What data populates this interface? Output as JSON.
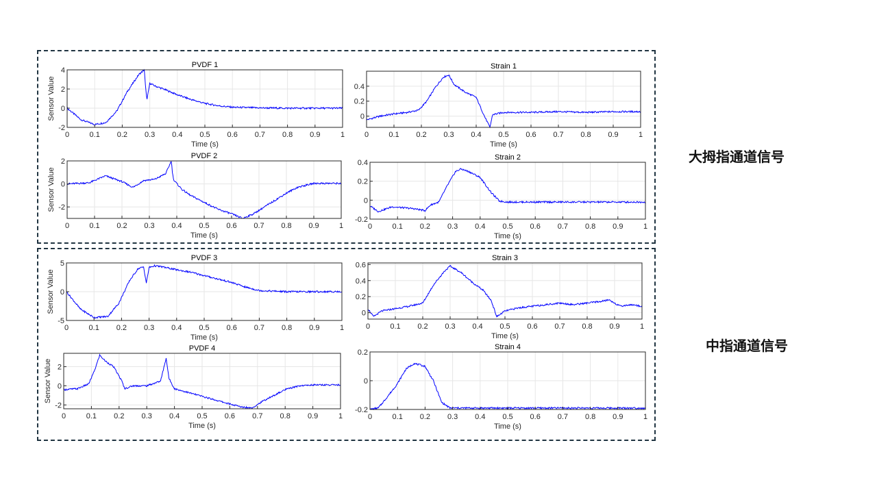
{
  "groups": [
    {
      "label": "大拇指通道信号"
    },
    {
      "label": "中指通道信号"
    }
  ],
  "colors": {
    "line": "#0000ff",
    "grid": "#e6e6e6",
    "axis": "#262626",
    "box": "#1f3340"
  },
  "chart_data": [
    {
      "type": "line",
      "title": "PVDF 1",
      "xlabel": "Time (s)",
      "ylabel": "Sensor Value",
      "xlim": [
        0,
        1
      ],
      "ylim": [
        -2,
        4
      ],
      "xticks": [
        0,
        0.1,
        0.2,
        0.3,
        0.4,
        0.5,
        0.6,
        0.7,
        0.8,
        0.9,
        1
      ],
      "xtick_labels": [
        "0",
        "0.1",
        "0.2",
        "0.3",
        "0.4",
        "0.5",
        "0.6",
        "0.7",
        "0.8",
        "0.9",
        "1"
      ],
      "yticks": [
        -2,
        0,
        2,
        4
      ],
      "ytick_labels": [
        "-2",
        "0",
        "2",
        "4"
      ],
      "grid": true,
      "series": [
        {
          "x": [
            0,
            0.05,
            0.1,
            0.14,
            0.18,
            0.22,
            0.26,
            0.28,
            0.285,
            0.29,
            0.3,
            0.32,
            0.35,
            0.4,
            0.45,
            0.5,
            0.55,
            0.6,
            0.7,
            0.8,
            0.9,
            1.0
          ],
          "y": [
            0,
            -1.2,
            -1.7,
            -1.5,
            -0.3,
            1.8,
            3.5,
            4.0,
            2.0,
            0.9,
            2.6,
            2.3,
            2.0,
            1.4,
            0.9,
            0.5,
            0.25,
            0.1,
            0.03,
            0.0,
            0.0,
            0.0
          ]
        }
      ]
    },
    {
      "type": "line",
      "title": "Strain 1",
      "xlabel": "Time (s)",
      "ylabel": "",
      "xlim": [
        0,
        1
      ],
      "ylim": [
        -0.15,
        0.6
      ],
      "xticks": [
        0,
        0.1,
        0.2,
        0.3,
        0.4,
        0.5,
        0.6,
        0.7,
        0.8,
        0.9,
        1
      ],
      "xtick_labels": [
        "0",
        "0.1",
        "0.2",
        "0.3",
        "0.4",
        "0.5",
        "0.6",
        "0.7",
        "0.8",
        "0.9",
        "1"
      ],
      "yticks": [
        0,
        0.2,
        0.4
      ],
      "ytick_labels": [
        "0",
        "0.2",
        "0.4"
      ],
      "grid": true,
      "series": [
        {
          "x": [
            0,
            0.05,
            0.1,
            0.15,
            0.19,
            0.22,
            0.25,
            0.28,
            0.3,
            0.32,
            0.36,
            0.4,
            0.43,
            0.45,
            0.46,
            0.5,
            0.6,
            0.7,
            0.8,
            0.9,
            1.0
          ],
          "y": [
            -0.05,
            0.0,
            0.03,
            0.05,
            0.08,
            0.2,
            0.38,
            0.52,
            0.55,
            0.42,
            0.32,
            0.25,
            0.0,
            -0.15,
            0.02,
            0.05,
            0.05,
            0.06,
            0.05,
            0.06,
            0.06
          ]
        }
      ]
    },
    {
      "type": "line",
      "title": "PVDF 2",
      "xlabel": "Time (s)",
      "ylabel": "Sensor Value",
      "xlim": [
        0,
        1
      ],
      "ylim": [
        -3,
        2
      ],
      "xticks": [
        0,
        0.1,
        0.2,
        0.3,
        0.4,
        0.5,
        0.6,
        0.7,
        0.8,
        0.9,
        1
      ],
      "xtick_labels": [
        "0",
        "0.1",
        "0.2",
        "0.3",
        "0.4",
        "0.5",
        "0.6",
        "0.7",
        "0.8",
        "0.9",
        "1"
      ],
      "yticks": [
        -2,
        0,
        2
      ],
      "ytick_labels": [
        "-2",
        "0",
        "2"
      ],
      "grid": true,
      "series": [
        {
          "x": [
            0,
            0.08,
            0.14,
            0.2,
            0.24,
            0.28,
            0.32,
            0.36,
            0.38,
            0.385,
            0.39,
            0.42,
            0.45,
            0.5,
            0.55,
            0.6,
            0.64,
            0.68,
            0.72,
            0.76,
            0.8,
            0.84,
            0.9,
            1.0
          ],
          "y": [
            0,
            0.1,
            0.7,
            0.2,
            -0.3,
            0.3,
            0.4,
            0.9,
            2.0,
            0.8,
            0.3,
            -0.5,
            -1.0,
            -1.6,
            -2.2,
            -2.6,
            -3.0,
            -2.6,
            -2.0,
            -1.4,
            -0.8,
            -0.3,
            0.05,
            0.05
          ]
        }
      ]
    },
    {
      "type": "line",
      "title": "Strain 2",
      "xlabel": "Time (s)",
      "ylabel": "",
      "xlim": [
        0,
        1
      ],
      "ylim": [
        -0.2,
        0.4
      ],
      "xticks": [
        0,
        0.1,
        0.2,
        0.3,
        0.4,
        0.5,
        0.6,
        0.7,
        0.8,
        0.9,
        1
      ],
      "xtick_labels": [
        "0",
        "0.1",
        "0.2",
        "0.3",
        "0.4",
        "0.5",
        "0.6",
        "0.7",
        "0.8",
        "0.9",
        "1"
      ],
      "yticks": [
        -0.2,
        0,
        0.2,
        0.4
      ],
      "ytick_labels": [
        "-0.2",
        "0",
        "0.2",
        "0.4"
      ],
      "grid": true,
      "series": [
        {
          "x": [
            0,
            0.03,
            0.08,
            0.12,
            0.16,
            0.2,
            0.22,
            0.25,
            0.28,
            0.31,
            0.33,
            0.36,
            0.4,
            0.44,
            0.47,
            0.5,
            0.6,
            0.7,
            0.8,
            0.9,
            1.0
          ],
          "y": [
            -0.06,
            -0.12,
            -0.07,
            -0.08,
            -0.09,
            -0.11,
            -0.05,
            -0.02,
            0.15,
            0.3,
            0.33,
            0.3,
            0.24,
            0.08,
            -0.01,
            -0.02,
            -0.02,
            -0.02,
            -0.02,
            -0.02,
            -0.02
          ]
        }
      ]
    },
    {
      "type": "line",
      "title": "PVDF 3",
      "xlabel": "Time (s)",
      "ylabel": "Sensor Value",
      "xlim": [
        0,
        1
      ],
      "ylim": [
        -5,
        5
      ],
      "xticks": [
        0,
        0.1,
        0.2,
        0.3,
        0.4,
        0.5,
        0.6,
        0.7,
        0.8,
        0.9,
        1
      ],
      "xtick_labels": [
        "0",
        "0.1",
        "0.2",
        "0.3",
        "0.4",
        "0.5",
        "0.6",
        "0.7",
        "0.8",
        "0.9",
        "1"
      ],
      "yticks": [
        -5,
        0,
        5
      ],
      "ytick_labels": [
        "-5",
        "0",
        "5"
      ],
      "grid": true,
      "series": [
        {
          "x": [
            0,
            0.05,
            0.1,
            0.15,
            0.19,
            0.23,
            0.26,
            0.28,
            0.29,
            0.3,
            0.32,
            0.35,
            0.4,
            0.45,
            0.5,
            0.55,
            0.6,
            0.65,
            0.7,
            0.8,
            0.9,
            1.0
          ],
          "y": [
            0,
            -3.0,
            -4.5,
            -4.3,
            -2.0,
            2.0,
            4.0,
            4.3,
            1.5,
            4.2,
            4.5,
            4.3,
            3.8,
            3.4,
            2.8,
            2.2,
            1.6,
            0.8,
            0.2,
            0.0,
            0.0,
            0.0
          ]
        }
      ]
    },
    {
      "type": "line",
      "title": "Strain 3",
      "xlabel": "Time (s)",
      "ylabel": "",
      "xlim": [
        0,
        1
      ],
      "ylim": [
        -0.08,
        0.62
      ],
      "xticks": [
        0,
        0.1,
        0.2,
        0.3,
        0.4,
        0.5,
        0.6,
        0.7,
        0.8,
        0.9,
        1
      ],
      "xtick_labels": [
        "0",
        "0.1",
        "0.2",
        "0.3",
        "0.4",
        "0.5",
        "0.6",
        "0.7",
        "0.8",
        "0.9",
        "1"
      ],
      "yticks": [
        0,
        0.2,
        0.4,
        0.6
      ],
      "ytick_labels": [
        "0",
        "0.2",
        "0.4",
        "0.6"
      ],
      "grid": true,
      "series": [
        {
          "x": [
            0,
            0.02,
            0.05,
            0.1,
            0.15,
            0.2,
            0.24,
            0.28,
            0.3,
            0.34,
            0.38,
            0.42,
            0.45,
            0.47,
            0.5,
            0.55,
            0.6,
            0.65,
            0.7,
            0.75,
            0.8,
            0.85,
            0.88,
            0.92,
            0.96,
            1.0
          ],
          "y": [
            0.05,
            -0.05,
            0.02,
            0.05,
            0.08,
            0.12,
            0.35,
            0.52,
            0.58,
            0.5,
            0.38,
            0.28,
            0.15,
            -0.05,
            0.02,
            0.06,
            0.08,
            0.1,
            0.12,
            0.1,
            0.12,
            0.14,
            0.16,
            0.08,
            0.1,
            0.08
          ]
        }
      ]
    },
    {
      "type": "line",
      "title": "PVDF 4",
      "xlabel": "Time (s)",
      "ylabel": "Sensor Value",
      "xlim": [
        0,
        1
      ],
      "ylim": [
        -2.4,
        3.4
      ],
      "xticks": [
        0,
        0.1,
        0.2,
        0.3,
        0.4,
        0.5,
        0.6,
        0.7,
        0.8,
        0.9,
        1
      ],
      "xtick_labels": [
        "0",
        "0.1",
        "0.2",
        "0.3",
        "0.4",
        "0.5",
        "0.6",
        "0.7",
        "0.8",
        "0.9",
        "1"
      ],
      "yticks": [
        -2,
        0,
        2
      ],
      "ytick_labels": [
        "-2",
        "0",
        "2"
      ],
      "grid": true,
      "series": [
        {
          "x": [
            0,
            0.05,
            0.09,
            0.11,
            0.13,
            0.15,
            0.18,
            0.21,
            0.22,
            0.25,
            0.3,
            0.35,
            0.37,
            0.38,
            0.4,
            0.45,
            0.5,
            0.55,
            0.6,
            0.64,
            0.68,
            0.72,
            0.76,
            0.8,
            0.85,
            0.9,
            1.0
          ],
          "y": [
            -0.4,
            -0.3,
            0.2,
            1.5,
            3.2,
            2.6,
            2.0,
            0.5,
            -0.3,
            0.0,
            0.0,
            0.5,
            2.9,
            0.8,
            -0.3,
            -0.7,
            -1.1,
            -1.5,
            -1.9,
            -2.2,
            -2.3,
            -1.6,
            -1.0,
            -0.4,
            0.0,
            0.1,
            0.1
          ]
        }
      ]
    },
    {
      "type": "line",
      "title": "Strain 4",
      "xlabel": "Time (s)",
      "ylabel": "",
      "xlim": [
        0,
        1
      ],
      "ylim": [
        -0.2,
        0.2
      ],
      "xticks": [
        0,
        0.1,
        0.2,
        0.3,
        0.4,
        0.5,
        0.6,
        0.7,
        0.8,
        0.9,
        1
      ],
      "xtick_labels": [
        "0",
        "0.1",
        "0.2",
        "0.3",
        "0.4",
        "0.5",
        "0.6",
        "0.7",
        "0.8",
        "0.9",
        "1"
      ],
      "yticks": [
        -0.2,
        0,
        0.2
      ],
      "ytick_labels": [
        "-0.2",
        "0",
        "0.2"
      ],
      "grid": true,
      "series": [
        {
          "x": [
            0,
            0.03,
            0.06,
            0.1,
            0.13,
            0.16,
            0.2,
            0.23,
            0.26,
            0.29,
            0.35,
            0.5,
            0.7,
            0.9,
            1.0
          ],
          "y": [
            -0.2,
            -0.19,
            -0.12,
            -0.02,
            0.08,
            0.12,
            0.1,
            0.0,
            -0.15,
            -0.19,
            -0.19,
            -0.19,
            -0.19,
            -0.19,
            -0.19
          ]
        }
      ]
    }
  ]
}
